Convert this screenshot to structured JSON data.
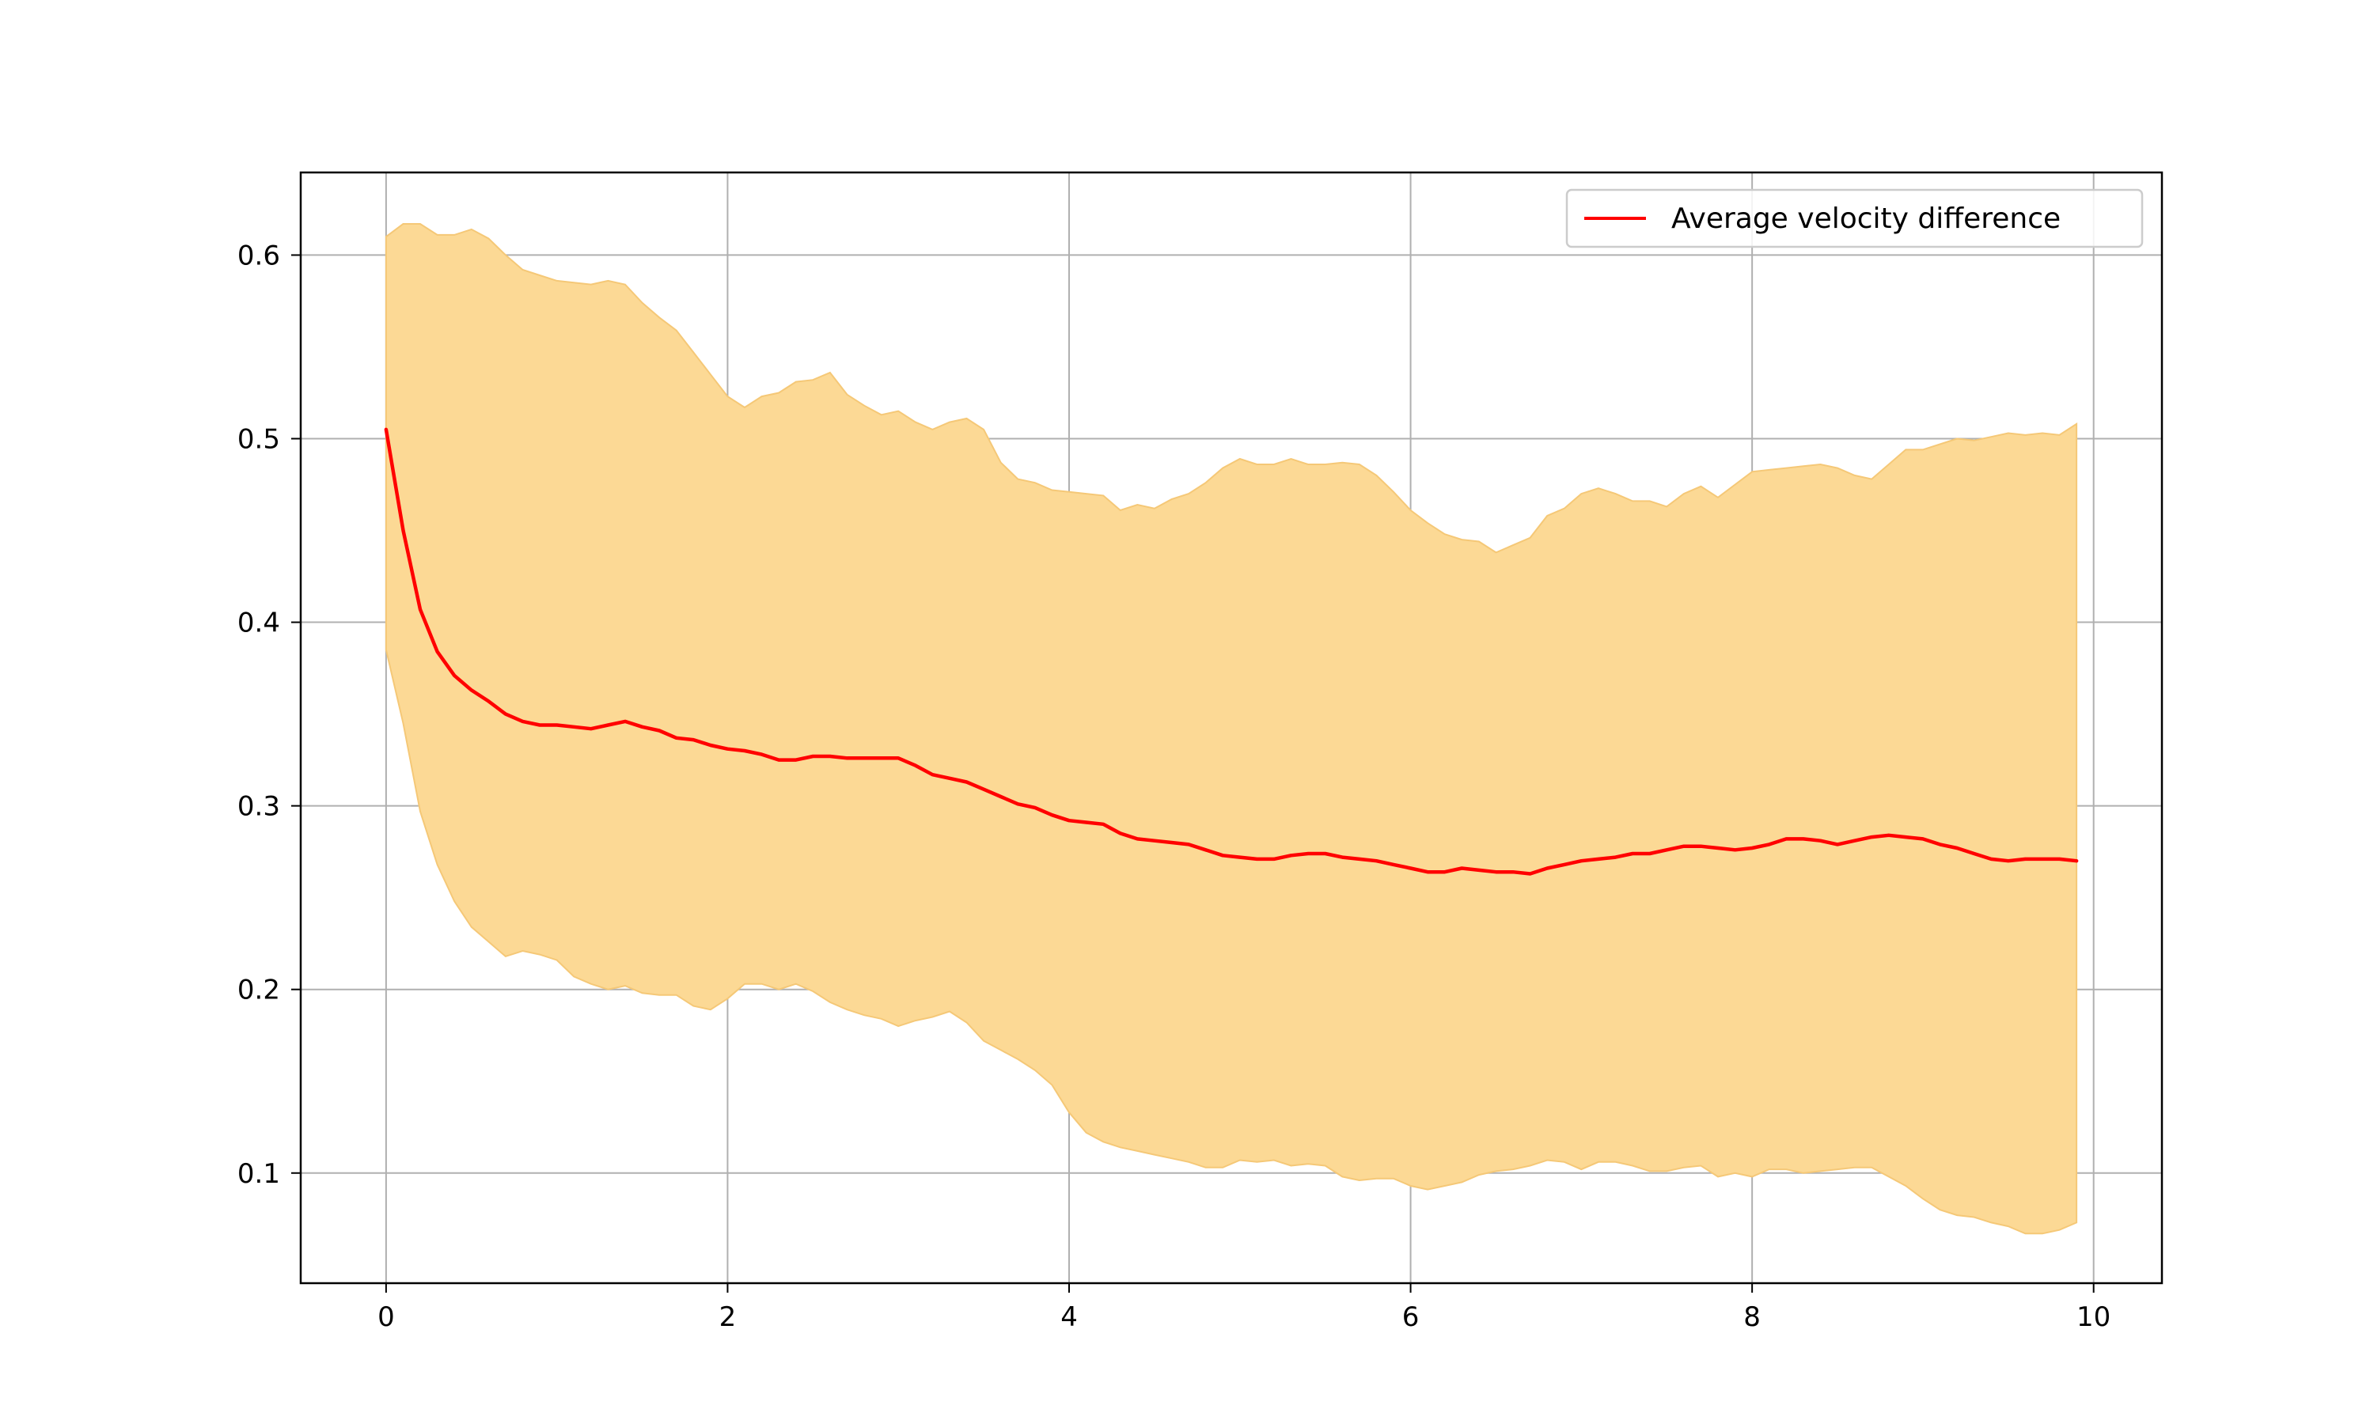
{
  "chart_data": {
    "type": "line",
    "title": "",
    "xlabel": "",
    "ylabel": "",
    "xlim": [
      -0.5,
      10.4
    ],
    "ylim": [
      0.04,
      0.645
    ],
    "xticks": [
      0,
      2,
      4,
      6,
      8,
      10
    ],
    "yticks": [
      0.1,
      0.2,
      0.3,
      0.4,
      0.5,
      0.6
    ],
    "xtick_labels": [
      "0",
      "2",
      "4",
      "6",
      "8",
      "10"
    ],
    "ytick_labels": [
      "0.1",
      "0.2",
      "0.3",
      "0.4",
      "0.5",
      "0.6"
    ],
    "grid": true,
    "legend_position": "top-right",
    "series": [
      {
        "name": "Average velocity difference",
        "color": "#ff0000",
        "x": [
          0.0,
          0.1,
          0.2,
          0.3,
          0.4,
          0.5,
          0.6,
          0.7,
          0.8,
          0.9,
          1.0,
          1.1,
          1.2,
          1.3,
          1.4,
          1.5,
          1.6,
          1.7,
          1.8,
          1.9,
          2.0,
          2.1,
          2.2,
          2.3,
          2.4,
          2.5,
          2.6,
          2.7,
          2.8,
          2.9,
          3.0,
          3.1,
          3.2,
          3.3,
          3.4,
          3.5,
          3.6,
          3.7,
          3.8,
          3.9,
          4.0,
          4.1,
          4.2,
          4.3,
          4.4,
          4.5,
          4.6,
          4.7,
          4.8,
          4.9,
          5.0,
          5.1,
          5.2,
          5.3,
          5.4,
          5.5,
          5.6,
          5.7,
          5.8,
          5.9,
          6.0,
          6.1,
          6.2,
          6.3,
          6.4,
          6.5,
          6.6,
          6.7,
          6.8,
          6.9,
          7.0,
          7.1,
          7.2,
          7.3,
          7.4,
          7.5,
          7.6,
          7.7,
          7.8,
          7.9,
          8.0,
          8.1,
          8.2,
          8.3,
          8.4,
          8.5,
          8.6,
          8.7,
          8.8,
          8.9,
          9.0,
          9.1,
          9.2,
          9.3,
          9.4,
          9.5,
          9.6,
          9.7,
          9.8,
          9.9
        ],
        "y": [
          0.505,
          0.45,
          0.407,
          0.384,
          0.371,
          0.363,
          0.357,
          0.35,
          0.346,
          0.344,
          0.344,
          0.343,
          0.342,
          0.344,
          0.346,
          0.343,
          0.341,
          0.337,
          0.336,
          0.333,
          0.331,
          0.33,
          0.328,
          0.325,
          0.325,
          0.327,
          0.327,
          0.326,
          0.326,
          0.326,
          0.326,
          0.322,
          0.317,
          0.315,
          0.313,
          0.309,
          0.305,
          0.301,
          0.299,
          0.295,
          0.292,
          0.291,
          0.29,
          0.285,
          0.282,
          0.281,
          0.28,
          0.279,
          0.276,
          0.273,
          0.272,
          0.271,
          0.271,
          0.273,
          0.274,
          0.274,
          0.272,
          0.271,
          0.27,
          0.268,
          0.266,
          0.264,
          0.264,
          0.266,
          0.265,
          0.264,
          0.264,
          0.263,
          0.266,
          0.268,
          0.27,
          0.271,
          0.272,
          0.274,
          0.274,
          0.276,
          0.278,
          0.278,
          0.277,
          0.276,
          0.277,
          0.279,
          0.282,
          0.282,
          0.281,
          0.279,
          0.281,
          0.283,
          0.284,
          0.283,
          0.282,
          0.279,
          0.277,
          0.274,
          0.271,
          0.27,
          0.271,
          0.271,
          0.271,
          0.27
        ]
      }
    ],
    "band": {
      "color": "#fcd995",
      "edge_color": "#f5c877",
      "x": [
        0.0,
        0.1,
        0.2,
        0.3,
        0.4,
        0.5,
        0.6,
        0.7,
        0.8,
        0.9,
        1.0,
        1.1,
        1.2,
        1.3,
        1.4,
        1.5,
        1.6,
        1.7,
        1.8,
        1.9,
        2.0,
        2.1,
        2.2,
        2.3,
        2.4,
        2.5,
        2.6,
        2.7,
        2.8,
        2.9,
        3.0,
        3.1,
        3.2,
        3.3,
        3.4,
        3.5,
        3.6,
        3.7,
        3.8,
        3.9,
        4.0,
        4.1,
        4.2,
        4.3,
        4.4,
        4.5,
        4.6,
        4.7,
        4.8,
        4.9,
        5.0,
        5.1,
        5.2,
        5.3,
        5.4,
        5.5,
        5.6,
        5.7,
        5.8,
        5.9,
        6.0,
        6.1,
        6.2,
        6.3,
        6.4,
        6.5,
        6.6,
        6.7,
        6.8,
        6.9,
        7.0,
        7.1,
        7.2,
        7.3,
        7.4,
        7.5,
        7.6,
        7.7,
        7.8,
        7.9,
        8.0,
        8.1,
        8.2,
        8.3,
        8.4,
        8.5,
        8.6,
        8.7,
        8.8,
        8.9,
        9.0,
        9.1,
        9.2,
        9.3,
        9.4,
        9.5,
        9.6,
        9.7,
        9.8,
        9.9
      ],
      "upper": [
        0.61,
        0.617,
        0.617,
        0.611,
        0.611,
        0.614,
        0.609,
        0.6,
        0.592,
        0.589,
        0.586,
        0.585,
        0.584,
        0.586,
        0.584,
        0.574,
        0.566,
        0.559,
        0.547,
        0.535,
        0.523,
        0.517,
        0.523,
        0.525,
        0.531,
        0.532,
        0.536,
        0.524,
        0.518,
        0.513,
        0.515,
        0.509,
        0.505,
        0.509,
        0.511,
        0.505,
        0.487,
        0.478,
        0.476,
        0.472,
        0.471,
        0.47,
        0.469,
        0.461,
        0.464,
        0.462,
        0.467,
        0.47,
        0.476,
        0.484,
        0.489,
        0.486,
        0.486,
        0.489,
        0.486,
        0.486,
        0.487,
        0.486,
        0.48,
        0.471,
        0.461,
        0.454,
        0.448,
        0.445,
        0.444,
        0.438,
        0.442,
        0.446,
        0.458,
        0.462,
        0.47,
        0.473,
        0.47,
        0.466,
        0.466,
        0.463,
        0.47,
        0.474,
        0.468,
        0.475,
        0.482,
        0.483,
        0.484,
        0.485,
        0.486,
        0.484,
        0.48,
        0.478,
        0.486,
        0.494,
        0.494,
        0.497,
        0.5,
        0.499,
        0.501,
        0.503,
        0.502,
        0.503,
        0.502,
        0.508
      ],
      "lower": [
        0.385,
        0.345,
        0.297,
        0.268,
        0.248,
        0.234,
        0.226,
        0.218,
        0.221,
        0.219,
        0.216,
        0.207,
        0.203,
        0.2,
        0.202,
        0.198,
        0.197,
        0.197,
        0.191,
        0.189,
        0.195,
        0.203,
        0.203,
        0.2,
        0.203,
        0.199,
        0.193,
        0.189,
        0.186,
        0.184,
        0.18,
        0.183,
        0.185,
        0.188,
        0.182,
        0.172,
        0.167,
        0.162,
        0.156,
        0.148,
        0.133,
        0.122,
        0.117,
        0.114,
        0.112,
        0.11,
        0.108,
        0.106,
        0.103,
        0.103,
        0.107,
        0.106,
        0.107,
        0.104,
        0.105,
        0.104,
        0.098,
        0.096,
        0.097,
        0.097,
        0.093,
        0.091,
        0.093,
        0.095,
        0.099,
        0.101,
        0.102,
        0.104,
        0.107,
        0.106,
        0.102,
        0.106,
        0.106,
        0.104,
        0.101,
        0.101,
        0.103,
        0.104,
        0.098,
        0.1,
        0.098,
        0.102,
        0.102,
        0.1,
        0.101,
        0.102,
        0.103,
        0.103,
        0.098,
        0.093,
        0.086,
        0.08,
        0.077,
        0.076,
        0.073,
        0.071,
        0.067,
        0.067,
        0.069,
        0.073
      ]
    }
  }
}
